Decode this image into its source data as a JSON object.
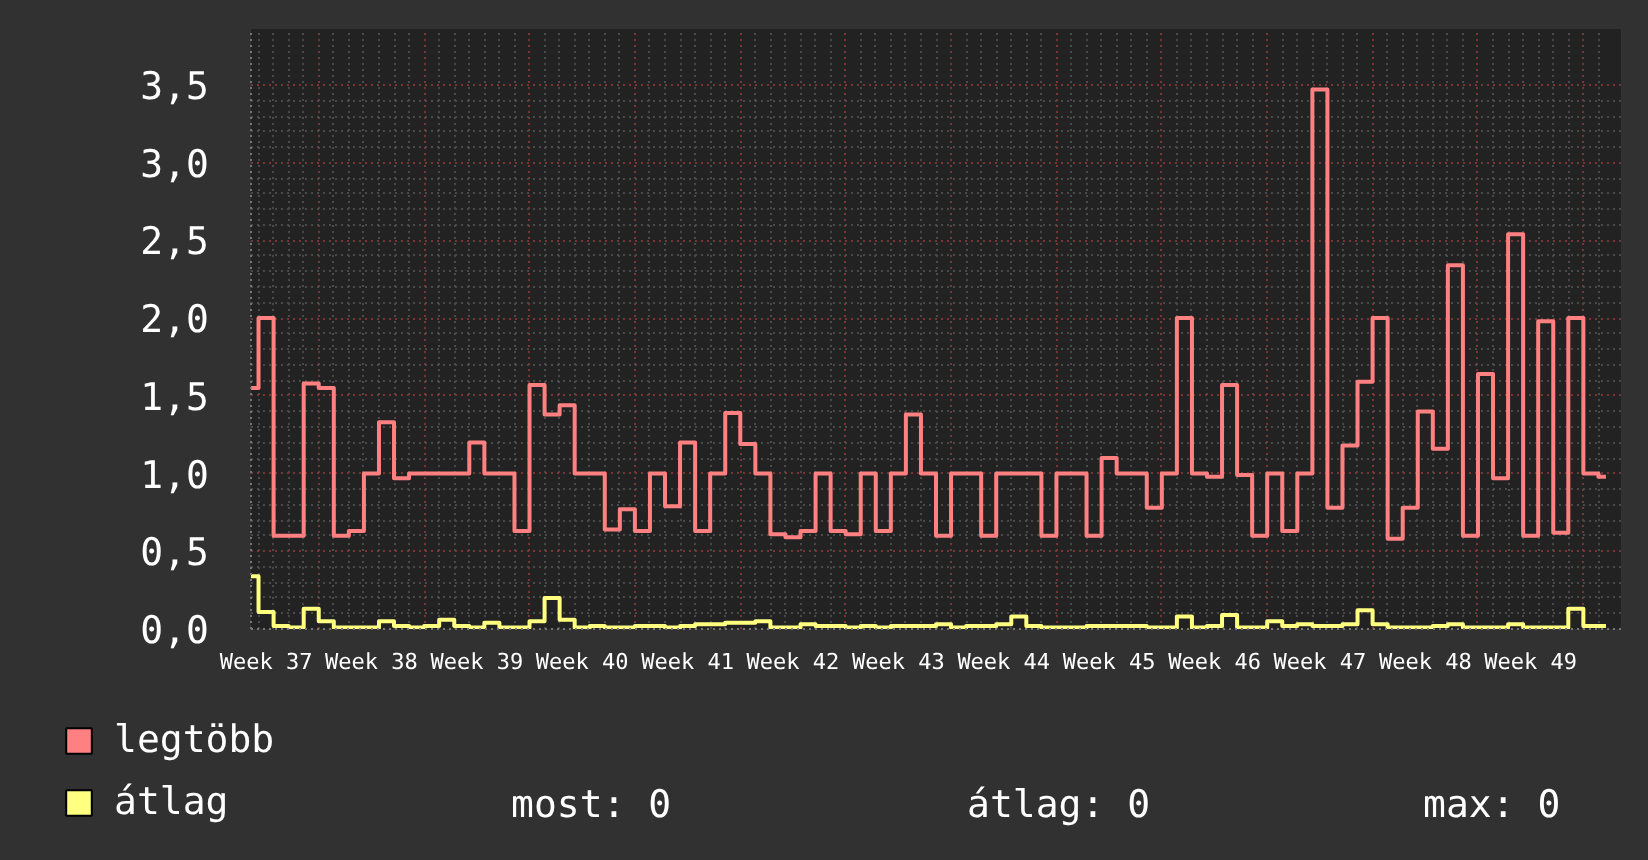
{
  "chart_data": {
    "type": "step",
    "categories": [
      null,
      "Week 37",
      null,
      null,
      null,
      null,
      null,
      null,
      "Week 38",
      null,
      null,
      null,
      null,
      null,
      null,
      "Week 39",
      null,
      null,
      null,
      null,
      null,
      null,
      "Week 40",
      null,
      null,
      null,
      null,
      null,
      null,
      "Week 41",
      null,
      null,
      null,
      null,
      null,
      null,
      "Week 42",
      null,
      null,
      null,
      null,
      null,
      null,
      "Week 43",
      null,
      null,
      null,
      null,
      null,
      null,
      "Week 44",
      null,
      null,
      null,
      null,
      null,
      null,
      "Week 45",
      null,
      null,
      null,
      null,
      null,
      null,
      "Week 46",
      null,
      null,
      null,
      null,
      null,
      null,
      "Week 47",
      null,
      null,
      null,
      null,
      null,
      null,
      "Week 48",
      null,
      null,
      null,
      null,
      null,
      null,
      "Week 49",
      null,
      null,
      null,
      null,
      null
    ],
    "series": [
      {
        "name": "legtöbb",
        "color": "#ff8080",
        "values": [
          1.55,
          2.0,
          0.6,
          0.6,
          1.58,
          1.55,
          0.6,
          0.63,
          1.0,
          1.33,
          0.97,
          1.0,
          1.0,
          1.0,
          1.0,
          1.2,
          1.0,
          1.0,
          0.63,
          1.57,
          1.38,
          1.44,
          1.0,
          1.0,
          0.64,
          0.77,
          0.63,
          1.0,
          0.79,
          1.2,
          0.63,
          1.0,
          1.39,
          1.19,
          1.0,
          0.61,
          0.59,
          0.63,
          1.0,
          0.63,
          0.61,
          1.0,
          0.63,
          1.0,
          1.38,
          1.0,
          0.6,
          1.0,
          1.0,
          0.6,
          1.0,
          1.0,
          1.0,
          0.6,
          1.0,
          1.0,
          0.6,
          1.1,
          1.0,
          1.0,
          0.78,
          1.0,
          2.0,
          1.0,
          0.98,
          1.57,
          0.99,
          0.6,
          1.0,
          0.63,
          1.0,
          3.47,
          0.78,
          1.18,
          1.59,
          2.0,
          0.58,
          0.78,
          1.4,
          1.16,
          2.34,
          0.6,
          1.64,
          0.97,
          2.54,
          0.6,
          1.98,
          0.62,
          2.0,
          1.0,
          0.98
        ]
      },
      {
        "name": "átlag",
        "color": "#ffff80",
        "values": [
          0.34,
          0.11,
          0.02,
          0.01,
          0.13,
          0.05,
          0.01,
          0.01,
          0.01,
          0.05,
          0.02,
          0.01,
          0.02,
          0.06,
          0.02,
          0.01,
          0.04,
          0.01,
          0.01,
          0.05,
          0.2,
          0.06,
          0.01,
          0.02,
          0.01,
          0.01,
          0.02,
          0.02,
          0.01,
          0.02,
          0.03,
          0.03,
          0.04,
          0.04,
          0.05,
          0.01,
          0.01,
          0.03,
          0.02,
          0.02,
          0.01,
          0.02,
          0.01,
          0.02,
          0.02,
          0.02,
          0.03,
          0.01,
          0.02,
          0.02,
          0.03,
          0.08,
          0.02,
          0.01,
          0.01,
          0.01,
          0.02,
          0.02,
          0.02,
          0.02,
          0.01,
          0.01,
          0.08,
          0.01,
          0.02,
          0.09,
          0.01,
          0.01,
          0.05,
          0.02,
          0.03,
          0.02,
          0.02,
          0.03,
          0.12,
          0.03,
          0.01,
          0.01,
          0.01,
          0.02,
          0.03,
          0.01,
          0.01,
          0.01,
          0.03,
          0.01,
          0.01,
          0.01,
          0.13,
          0.02,
          0.02
        ]
      }
    ],
    "ylim": [
      0,
      3.86
    ],
    "yticks": [
      {
        "value": 0,
        "label": "0,0"
      },
      {
        "value": 0.5,
        "label": "0,5"
      },
      {
        "value": 1,
        "label": "1,0"
      },
      {
        "value": 1.5,
        "label": "1,5"
      },
      {
        "value": 2,
        "label": "2,0"
      },
      {
        "value": 2.5,
        "label": "2,5"
      },
      {
        "value": 3,
        "label": "3,0"
      },
      {
        "value": 3.5,
        "label": "3,5"
      }
    ],
    "grid": true,
    "legend": "bottom left",
    "annotations": [
      "most: 0",
      "átlag: 0",
      "max: 0"
    ]
  }
}
